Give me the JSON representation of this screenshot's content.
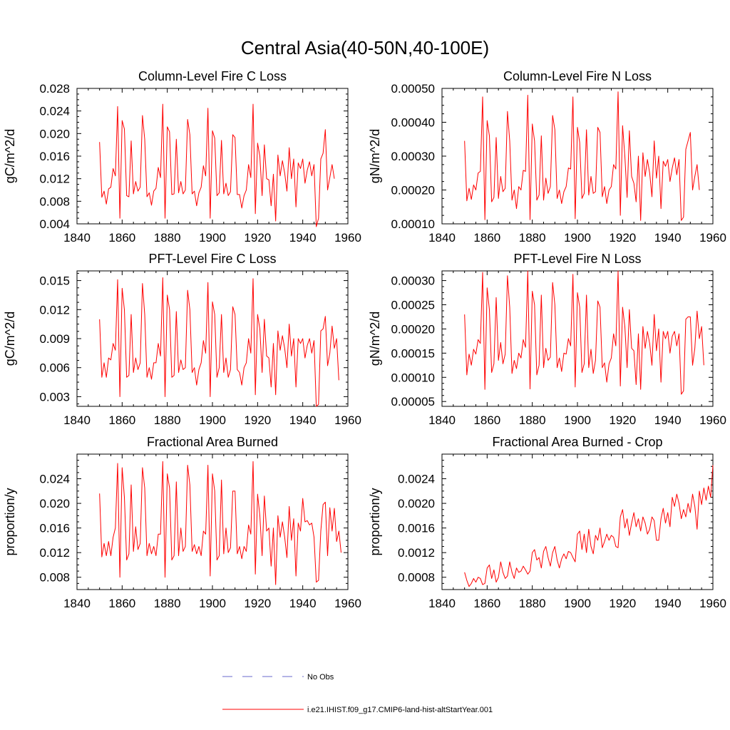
{
  "title": "Central Asia(40-50N,40-100E)",
  "legend": {
    "placement": "bottom-center",
    "items": [
      {
        "label": "No Obs",
        "color": "#6a6acd",
        "style": "dashed"
      },
      {
        "label": "i.e21.IHIST.f09_g17.CMIP6-land-hist-altStartYear.001",
        "color": "#ff0000",
        "style": "solid"
      }
    ]
  },
  "chart_data": [
    {
      "type": "line",
      "title": "Column-Level Fire C Loss",
      "xlabel": "",
      "ylabel": "gC/m^2/d",
      "xlim": [
        1840,
        1960
      ],
      "ylim": [
        0.004,
        0.028
      ],
      "xticks": [
        1840,
        1860,
        1880,
        1900,
        1920,
        1940,
        1960
      ],
      "yticks": [
        0.004,
        0.008,
        0.012,
        0.016,
        0.02,
        0.024,
        0.028
      ],
      "ytick_labels": [
        "0.004",
        "0.008",
        "0.012",
        "0.016",
        "0.020",
        "0.024",
        "0.028"
      ],
      "color": "#ff0000",
      "x_start": 1850,
      "values": [
        0.0185,
        0.0087,
        0.0098,
        0.0075,
        0.0102,
        0.0105,
        0.0138,
        0.0125,
        0.0248,
        0.005,
        0.0223,
        0.0208,
        0.009,
        0.0088,
        0.0187,
        0.0093,
        0.0115,
        0.0098,
        0.0105,
        0.0232,
        0.019,
        0.0088,
        0.0095,
        0.0073,
        0.0098,
        0.0103,
        0.014,
        0.0122,
        0.0252,
        0.005,
        0.0212,
        0.0203,
        0.0092,
        0.0093,
        0.019,
        0.0095,
        0.0115,
        0.0093,
        0.01,
        0.0225,
        0.0198,
        0.0093,
        0.0098,
        0.0072,
        0.0095,
        0.0105,
        0.0143,
        0.0125,
        0.0245,
        0.005,
        0.0205,
        0.0192,
        0.009,
        0.0095,
        0.0188,
        0.0093,
        0.0112,
        0.009,
        0.0097,
        0.0198,
        0.0193,
        0.0092,
        0.0092,
        0.0068,
        0.009,
        0.01,
        0.0145,
        0.0122,
        0.0252,
        0.0058,
        0.0183,
        0.016,
        0.009,
        0.018,
        0.012,
        0.0118,
        0.0072,
        0.0128,
        0.0045,
        0.0162,
        0.0125,
        0.0152,
        0.013,
        0.0098,
        0.0175,
        0.012,
        0.0155,
        0.007,
        0.0148,
        0.0138,
        0.0155,
        0.0112,
        0.0135,
        0.015,
        0.0125,
        0.0145,
        0.0035,
        0.005,
        0.0155,
        0.0165,
        0.0207,
        0.01,
        0.0122,
        0.0145,
        0.012
      ]
    },
    {
      "type": "line",
      "title": "Column-Level Fire N Loss",
      "xlabel": "",
      "ylabel": "gN/m^2/d",
      "xlim": [
        1840,
        1960
      ],
      "ylim": [
        0.0001,
        0.0005
      ],
      "xticks": [
        1840,
        1860,
        1880,
        1900,
        1920,
        1940,
        1960
      ],
      "yticks": [
        0.0001,
        0.0002,
        0.0003,
        0.0004,
        0.0005
      ],
      "ytick_labels": [
        "0.00010",
        "0.00020",
        "0.00030",
        "0.00040",
        "0.00050"
      ],
      "color": "#ff0000",
      "x_start": 1850,
      "values": [
        0.000345,
        0.000168,
        0.000205,
        0.000172,
        0.000215,
        0.0002,
        0.00025,
        0.000255,
        0.000475,
        0.000112,
        0.000405,
        0.00036,
        0.000165,
        0.000178,
        0.000355,
        0.000175,
        0.00024,
        0.000195,
        0.000205,
        0.000432,
        0.000345,
        0.00017,
        0.0002,
        0.000145,
        0.00021,
        0.0002,
        0.000258,
        0.000255,
        0.00048,
        0.000112,
        0.000395,
        0.000345,
        0.00017,
        0.000185,
        0.00036,
        0.00017,
        0.000235,
        0.00019,
        0.00021,
        0.00042,
        0.000378,
        0.000175,
        0.0002,
        0.00016,
        0.000195,
        0.00021,
        0.000265,
        0.000262,
        0.000475,
        0.000115,
        0.000385,
        0.00034,
        0.000175,
        0.00019,
        0.000378,
        0.000185,
        0.00024,
        0.00019,
        0.000195,
        0.000385,
        0.00037,
        0.00018,
        0.00021,
        0.00016,
        0.0002,
        0.00021,
        0.000275,
        0.000262,
        0.00049,
        0.000125,
        0.00039,
        0.0003,
        0.000178,
        0.000375,
        0.00024,
        0.00022,
        0.000165,
        0.0003,
        0.00011,
        0.00031,
        0.00024,
        0.00029,
        0.00025,
        0.00018,
        0.000345,
        0.000235,
        0.0003,
        0.000145,
        0.000285,
        0.00027,
        0.00029,
        0.000225,
        0.000265,
        0.000295,
        0.000245,
        0.00029,
        0.00011,
        0.00012,
        0.00032,
        0.000345,
        0.00037,
        0.0002,
        0.00024,
        0.000275,
        0.0002
      ]
    },
    {
      "type": "line",
      "title": "PFT-Level Fire C Loss",
      "xlabel": "",
      "ylabel": "gC/m^2/d",
      "xlim": [
        1840,
        1960
      ],
      "ylim": [
        0.002,
        0.016
      ],
      "xticks": [
        1840,
        1860,
        1880,
        1900,
        1920,
        1940,
        1960
      ],
      "yticks": [
        0.003,
        0.006,
        0.009,
        0.012,
        0.015
      ],
      "ytick_labels": [
        "0.003",
        "0.006",
        "0.009",
        "0.012",
        "0.015"
      ],
      "color": "#ff0000",
      "x_start": 1850,
      "values": [
        0.011,
        0.005,
        0.0065,
        0.005,
        0.007,
        0.0068,
        0.0085,
        0.0078,
        0.0151,
        0.003,
        0.0142,
        0.012,
        0.005,
        0.0052,
        0.0115,
        0.0055,
        0.007,
        0.0058,
        0.0065,
        0.0147,
        0.0115,
        0.005,
        0.006,
        0.0048,
        0.0065,
        0.0065,
        0.0085,
        0.0072,
        0.0153,
        0.003,
        0.0135,
        0.012,
        0.005,
        0.0052,
        0.0118,
        0.0055,
        0.0068,
        0.0058,
        0.006,
        0.014,
        0.012,
        0.0055,
        0.006,
        0.0042,
        0.0058,
        0.0065,
        0.0088,
        0.0075,
        0.0148,
        0.003,
        0.0128,
        0.0115,
        0.005,
        0.006,
        0.0115,
        0.0055,
        0.007,
        0.005,
        0.0058,
        0.0123,
        0.0115,
        0.0058,
        0.0055,
        0.0042,
        0.006,
        0.0065,
        0.009,
        0.0075,
        0.0152,
        0.0032,
        0.0115,
        0.01,
        0.0055,
        0.011,
        0.0072,
        0.007,
        0.004,
        0.0085,
        0.0032,
        0.0098,
        0.0078,
        0.0093,
        0.008,
        0.006,
        0.0105,
        0.0072,
        0.009,
        0.004,
        0.009,
        0.0085,
        0.009,
        0.007,
        0.0083,
        0.009,
        0.0075,
        0.0088,
        0.002,
        0.0022,
        0.0098,
        0.01,
        0.0113,
        0.0062,
        0.0075,
        0.0103,
        0.008,
        0.009,
        0.0047
      ]
    },
    {
      "type": "line",
      "title": "PFT-Level Fire N Loss",
      "xlabel": "",
      "ylabel": "gN/m^2/d",
      "xlim": [
        1840,
        1960
      ],
      "ylim": [
        4e-05,
        0.00032
      ],
      "xticks": [
        1840,
        1860,
        1880,
        1900,
        1920,
        1940,
        1960
      ],
      "yticks": [
        5e-05,
        0.0001,
        0.00015,
        0.0002,
        0.00025,
        0.0003
      ],
      "ytick_labels": [
        "0.00005",
        "0.00010",
        "0.00015",
        "0.00020",
        "0.00025",
        "0.00030"
      ],
      "color": "#ff0000",
      "x_start": 1850,
      "values": [
        0.00023,
        0.000105,
        0.000148,
        0.000125,
        0.000158,
        0.000148,
        0.000178,
        0.00017,
        0.000317,
        7.5e-05,
        0.000285,
        0.00024,
        0.00011,
        0.000128,
        0.000265,
        0.000135,
        0.000172,
        0.000128,
        0.000148,
        0.00031,
        0.000245,
        0.000108,
        0.000135,
        0.000118,
        0.00015,
        0.00014,
        0.000178,
        0.000162,
        0.00032,
        7.6e-05,
        0.000278,
        0.00025,
        0.000105,
        0.000125,
        0.00027,
        0.00012,
        0.00016,
        0.000135,
        0.000142,
        0.000296,
        0.00025,
        0.00012,
        0.00014,
        0.000112,
        0.00015,
        0.000148,
        0.00018,
        0.000165,
        0.000313,
        8e-05,
        0.000275,
        0.000245,
        0.00011,
        0.000128,
        0.00027,
        0.00012,
        0.000158,
        0.000108,
        0.000135,
        0.000258,
        0.000245,
        0.00012,
        0.00013,
        9e-05,
        0.000128,
        0.00014,
        0.00019,
        0.000165,
        0.00032,
        8.2e-05,
        0.000245,
        0.000205,
        0.00012,
        0.00024,
        0.00016,
        0.000155,
        8.5e-05,
        0.00019,
        7.5e-05,
        0.000205,
        0.00016,
        0.000195,
        0.00017,
        0.000125,
        0.00023,
        0.000155,
        0.0002,
        9e-05,
        0.000195,
        0.00018,
        0.000195,
        0.00015,
        0.000185,
        0.000195,
        0.000165,
        0.00019,
        6.5e-05,
        7.2e-05,
        0.00022,
        0.000225,
        0.000225,
        0.000125,
        0.00016,
        0.000237,
        0.00018,
        0.000205,
        0.000125
      ]
    },
    {
      "type": "line",
      "title": "Fractional Area Burned",
      "xlabel": "",
      "ylabel": "proportion/y",
      "xlim": [
        1840,
        1960
      ],
      "ylim": [
        0.006,
        0.028
      ],
      "xticks": [
        1840,
        1860,
        1880,
        1900,
        1920,
        1940,
        1960
      ],
      "yticks": [
        0.008,
        0.012,
        0.016,
        0.02,
        0.024
      ],
      "ytick_labels": [
        "0.008",
        "0.012",
        "0.016",
        "0.020",
        "0.024"
      ],
      "color": "#ff0000",
      "x_start": 1850,
      "values": [
        0.0216,
        0.0113,
        0.0135,
        0.0115,
        0.0138,
        0.0115,
        0.0145,
        0.016,
        0.0265,
        0.008,
        0.0258,
        0.021,
        0.0108,
        0.0118,
        0.023,
        0.0122,
        0.0162,
        0.0125,
        0.0135,
        0.0258,
        0.0225,
        0.0115,
        0.0135,
        0.0118,
        0.013,
        0.0115,
        0.015,
        0.015,
        0.0268,
        0.008,
        0.0248,
        0.0225,
        0.0108,
        0.0115,
        0.0235,
        0.0115,
        0.016,
        0.0122,
        0.013,
        0.0262,
        0.023,
        0.0122,
        0.0133,
        0.0118,
        0.013,
        0.0115,
        0.0155,
        0.015,
        0.0262,
        0.0082,
        0.0248,
        0.022,
        0.0108,
        0.0115,
        0.0238,
        0.0118,
        0.016,
        0.012,
        0.0128,
        0.022,
        0.022,
        0.0118,
        0.013,
        0.011,
        0.013,
        0.0122,
        0.0165,
        0.015,
        0.0268,
        0.0085,
        0.0215,
        0.018,
        0.0115,
        0.0212,
        0.0155,
        0.016,
        0.0098,
        0.016,
        0.0068,
        0.018,
        0.0145,
        0.017,
        0.0145,
        0.0112,
        0.0195,
        0.014,
        0.0175,
        0.0082,
        0.0168,
        0.0155,
        0.0208,
        0.017,
        0.0172,
        0.0165,
        0.0168,
        0.0145,
        0.0072,
        0.0075,
        0.0155,
        0.0198,
        0.0202,
        0.0115,
        0.0193,
        0.0155,
        0.0192,
        0.0138,
        0.0155,
        0.012
      ]
    },
    {
      "type": "line",
      "title": "Fractional Area Burned - Crop",
      "xlabel": "",
      "ylabel": "proportion/y",
      "xlim": [
        1840,
        1960
      ],
      "ylim": [
        0.0006,
        0.0028
      ],
      "xticks": [
        1840,
        1860,
        1880,
        1900,
        1920,
        1940,
        1960
      ],
      "yticks": [
        0.0008,
        0.0012,
        0.0016,
        0.002,
        0.0024
      ],
      "ytick_labels": [
        "0.0008",
        "0.0012",
        "0.0016",
        "0.0020",
        "0.0024"
      ],
      "color": "#ff0000",
      "x_start": 1850,
      "values": [
        0.00088,
        0.00075,
        0.00065,
        0.0007,
        0.00078,
        0.00072,
        0.0008,
        0.00078,
        0.00068,
        0.0007,
        0.00095,
        0.001,
        0.00078,
        0.00092,
        0.00072,
        0.0008,
        0.00105,
        0.00088,
        0.00078,
        0.00082,
        0.00105,
        0.00088,
        0.00078,
        0.00095,
        0.00088,
        0.0009,
        0.00098,
        0.00092,
        0.00085,
        0.0009,
        0.0012,
        0.00125,
        0.00108,
        0.00112,
        0.00095,
        0.00122,
        0.0013,
        0.00112,
        0.00098,
        0.0012,
        0.0013,
        0.00108,
        0.00095,
        0.0011,
        0.00118,
        0.0011,
        0.00122,
        0.0012,
        0.00112,
        0.00105,
        0.0015,
        0.00155,
        0.00125,
        0.0015,
        0.0012,
        0.00158,
        0.0013,
        0.00118,
        0.00148,
        0.0014,
        0.0016,
        0.00128,
        0.00138,
        0.0015,
        0.0014,
        0.00148,
        0.00145,
        0.0013,
        0.00128,
        0.00178,
        0.0019,
        0.0016,
        0.00175,
        0.00148,
        0.00168,
        0.00185,
        0.00162,
        0.00175,
        0.00155,
        0.00178,
        0.00168,
        0.0015,
        0.00158,
        0.00178,
        0.00172,
        0.0014,
        0.0014,
        0.00175,
        0.00192,
        0.00168,
        0.00185,
        0.00162,
        0.0021,
        0.00195,
        0.00215,
        0.002,
        0.00175,
        0.0019,
        0.00178,
        0.002,
        0.00185,
        0.00215,
        0.00195,
        0.00158,
        0.0022,
        0.00198,
        0.00225,
        0.00205,
        0.00228,
        0.0021,
        0.00262
      ]
    }
  ]
}
